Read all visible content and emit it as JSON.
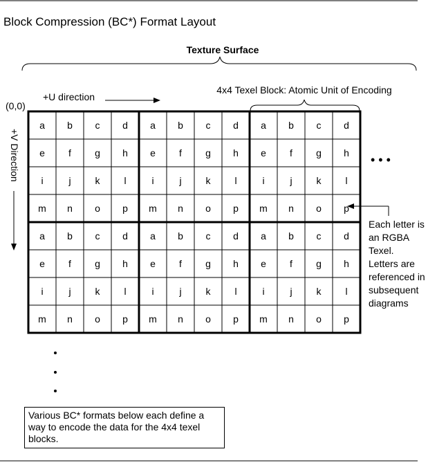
{
  "title": "Block Compression (BC*) Format Layout",
  "surface_label": "Texture Surface",
  "origin_label": "(0,0)",
  "u_label": "+U direction",
  "v_label": "+V Direction",
  "block_label": "4x4 Texel Block: Atomic Unit of Encoding",
  "letters": [
    [
      "a",
      "b",
      "c",
      "d"
    ],
    [
      "e",
      "f",
      "g",
      "h"
    ],
    [
      "i",
      "j",
      "k",
      "l"
    ],
    [
      "m",
      "n",
      "o",
      "p"
    ]
  ],
  "block_grid": {
    "rows": 2,
    "cols": 3
  },
  "letter_note": [
    "Each letter is",
    "an RGBA",
    "Texel.",
    "Letters are",
    "referenced in",
    "subsequent",
    "diagrams"
  ],
  "continuation_dots": "• • •",
  "bottom_note": "Various BC* formats below each define a way to encode the data for the 4x4 texel blocks."
}
